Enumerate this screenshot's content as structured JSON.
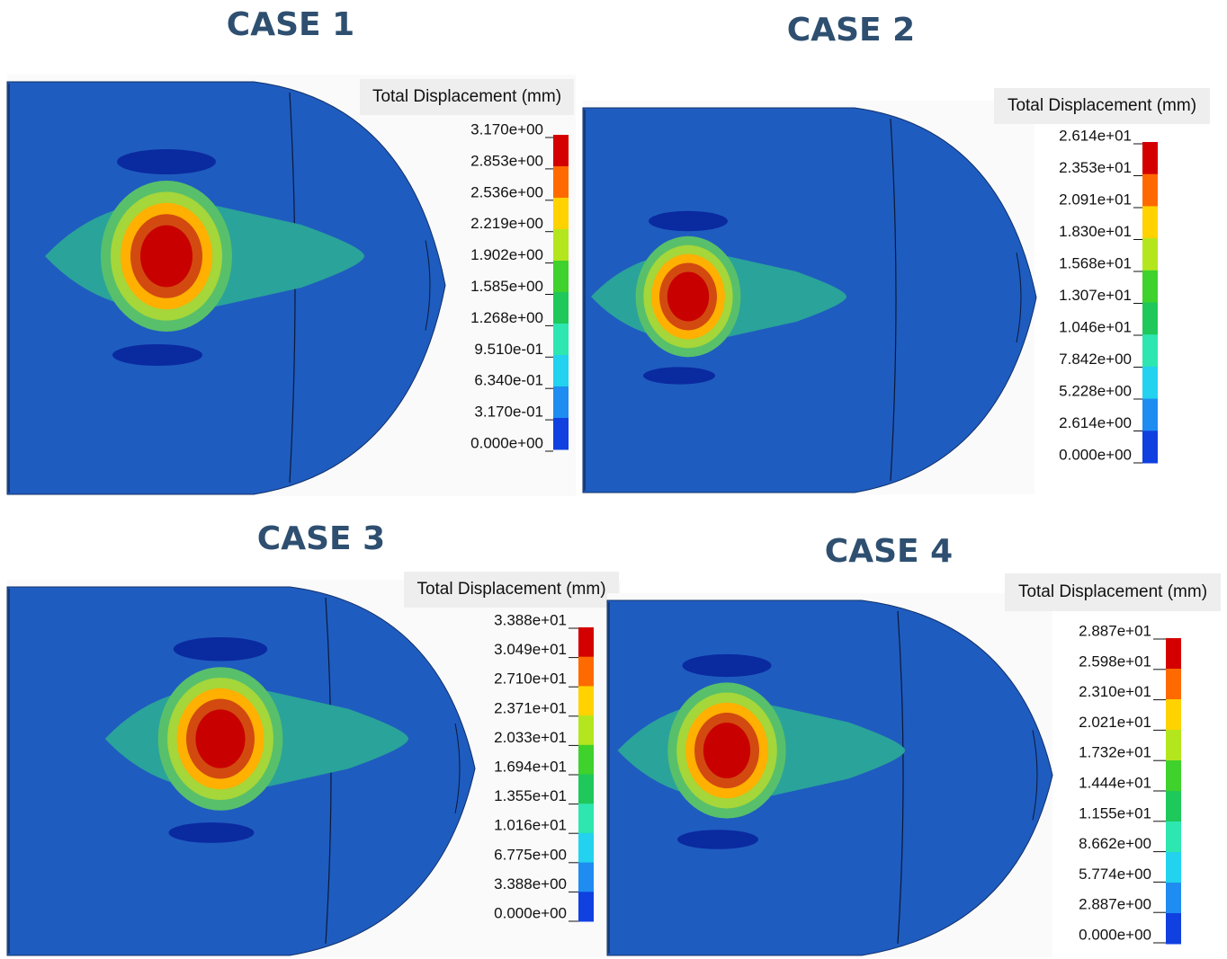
{
  "panels": [
    {
      "title": "CASE 1",
      "legend_title": "Total Displacement (mm)",
      "legend_labels": [
        "3.170e+00",
        "2.853e+00",
        "2.536e+00",
        "2.219e+00",
        "1.902e+00",
        "1.585e+00",
        "1.268e+00",
        "9.510e-01",
        "6.340e-01",
        "3.170e-01",
        "0.000e+00"
      ]
    },
    {
      "title": "CASE 2",
      "legend_title": "Total Displacement (mm)",
      "legend_labels": [
        "2.614e+01",
        "2.353e+01",
        "2.091e+01",
        "1.830e+01",
        "1.568e+01",
        "1.307e+01",
        "1.046e+01",
        "7.842e+00",
        "5.228e+00",
        "2.614e+00",
        "0.000e+00"
      ]
    },
    {
      "title": "CASE 3",
      "legend_title": "Total Displacement (mm)",
      "legend_labels": [
        "3.388e+01",
        "3.049e+01",
        "2.710e+01",
        "2.371e+01",
        "2.033e+01",
        "1.694e+01",
        "1.355e+01",
        "1.016e+01",
        "6.775e+00",
        "3.388e+00",
        "0.000e+00"
      ]
    },
    {
      "title": "CASE 4",
      "legend_title": "Total Displacement (mm)",
      "legend_labels": [
        "2.887e+01",
        "2.598e+01",
        "2.310e+01",
        "2.021e+01",
        "1.732e+01",
        "1.444e+01",
        "1.155e+01",
        "8.662e+00",
        "5.774e+00",
        "2.887e+00",
        "0.000e+00"
      ]
    }
  ]
}
